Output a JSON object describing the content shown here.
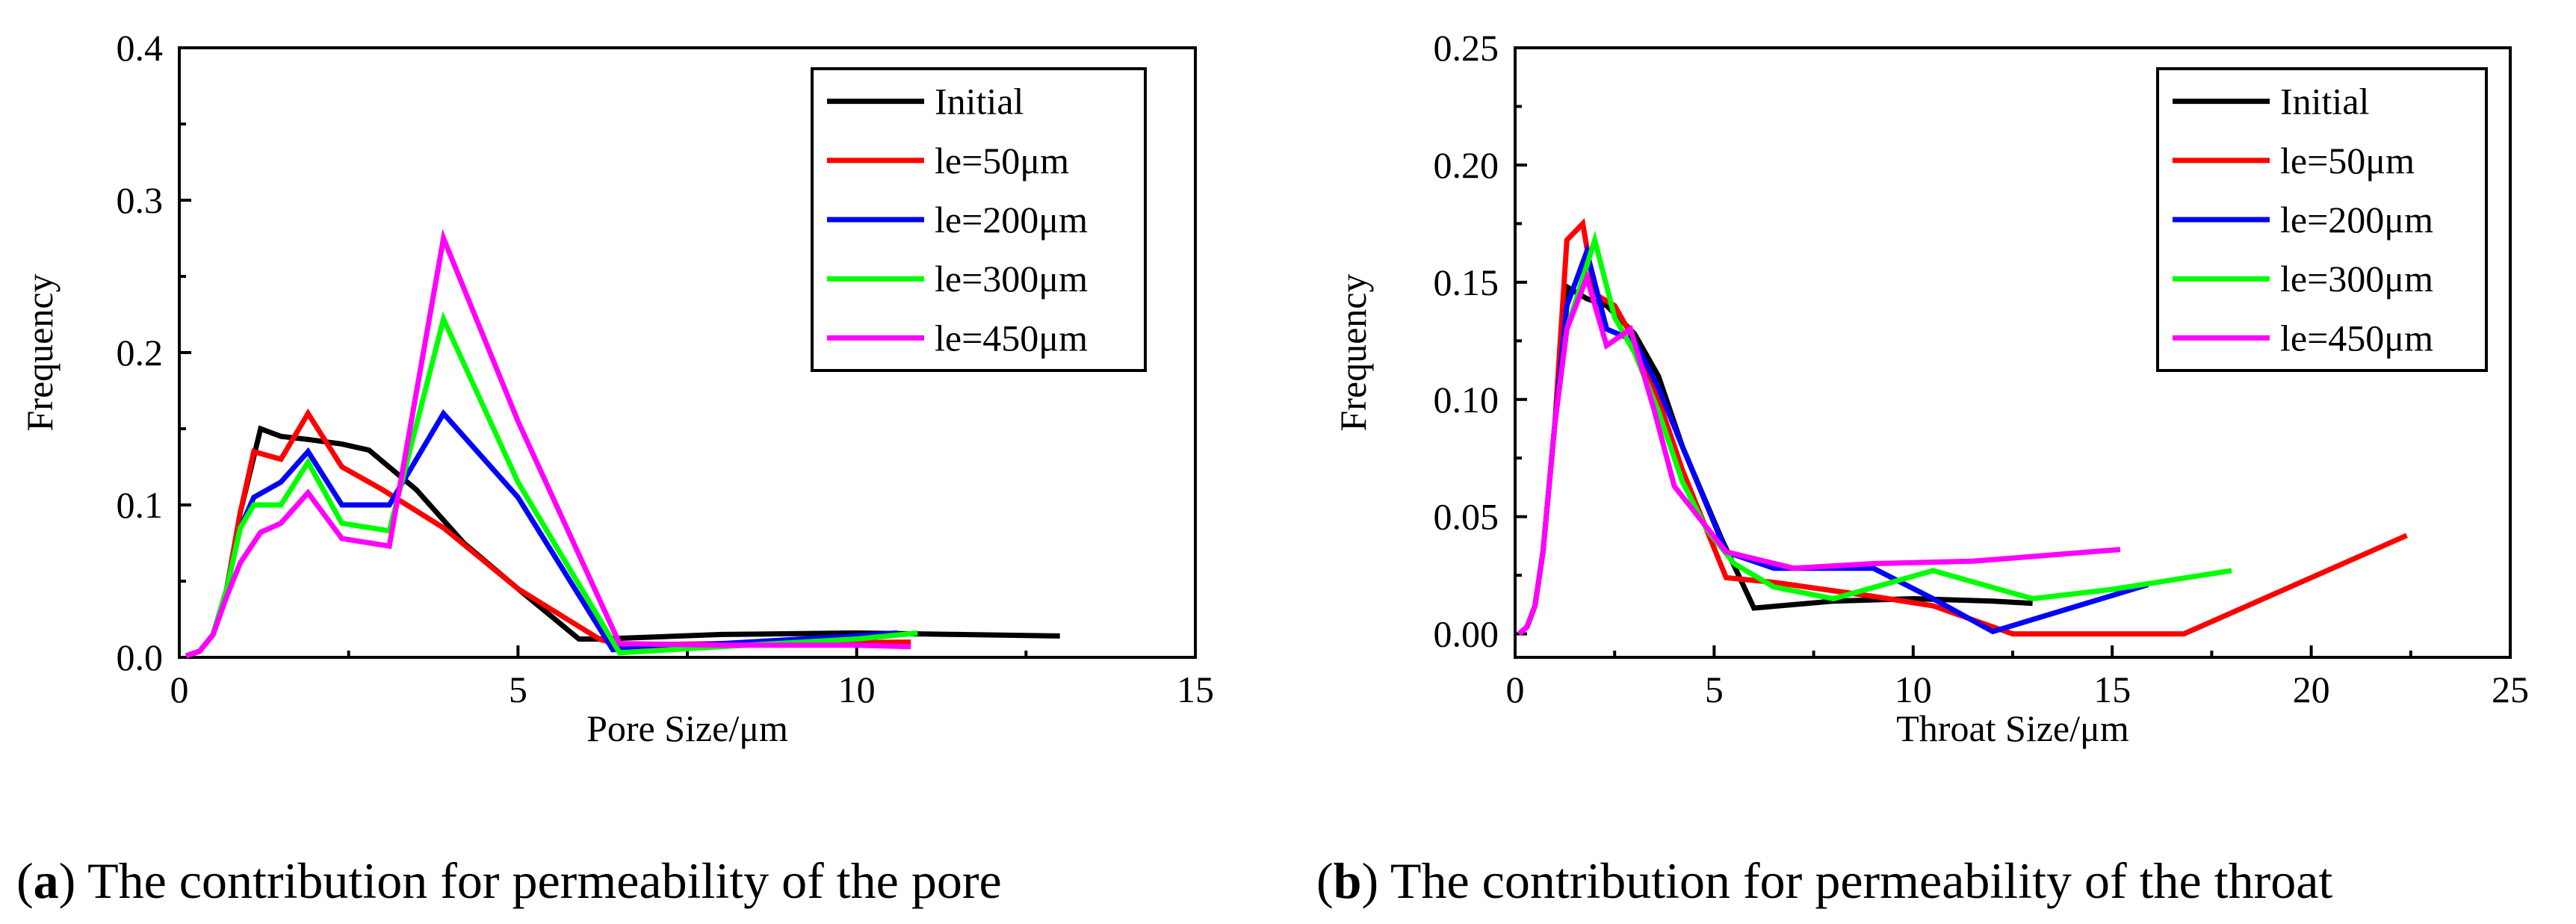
{
  "chart_data": [
    {
      "type": "line",
      "id": "a",
      "xlabel": "Pore Size/μm",
      "ylabel": "Frequency",
      "xlim": [
        0,
        15
      ],
      "ylim": [
        0,
        0.4
      ],
      "xticks": [
        0,
        5,
        10,
        15
      ],
      "xtick_labels": [
        "0",
        "5",
        "10",
        "15"
      ],
      "yticks": [
        0.0,
        0.1,
        0.2,
        0.3,
        0.4
      ],
      "ytick_labels": [
        "0.0",
        "0.1",
        "0.2",
        "0.3",
        "0.4"
      ],
      "legend_position": "top-right",
      "caption_letter": "a",
      "caption_text": " The contribution for permeability of the pore",
      "series": [
        {
          "name": "Initial",
          "color": "#000000",
          "x": [
            0.1,
            0.3,
            0.5,
            0.7,
            0.9,
            1.2,
            1.5,
            1.9,
            2.4,
            2.8,
            3.5,
            4.2,
            5.0,
            5.9,
            6.2,
            6.8,
            8.0,
            10.0,
            11.5,
            13.0
          ],
          "y": [
            0.001,
            0.004,
            0.015,
            0.045,
            0.095,
            0.15,
            0.145,
            0.143,
            0.14,
            0.136,
            0.11,
            0.075,
            0.045,
            0.012,
            0.012,
            0.013,
            0.015,
            0.016,
            0.015,
            0.014
          ]
        },
        {
          "name": "le=50μm",
          "color": "#ff0000",
          "x": [
            0.1,
            0.3,
            0.5,
            0.7,
            0.9,
            1.1,
            1.5,
            1.9,
            2.4,
            3.0,
            3.9,
            5.0,
            6.2,
            6.5,
            8.0,
            10.8
          ],
          "y": [
            0.001,
            0.004,
            0.015,
            0.045,
            0.095,
            0.135,
            0.13,
            0.16,
            0.125,
            0.11,
            0.085,
            0.045,
            0.012,
            0.008,
            0.009,
            0.01
          ]
        },
        {
          "name": "le=200μm",
          "color": "#0000ff",
          "x": [
            0.1,
            0.3,
            0.5,
            0.7,
            0.9,
            1.1,
            1.5,
            1.9,
            2.4,
            3.1,
            3.9,
            5.0,
            6.4,
            10.0,
            10.6
          ],
          "y": [
            0.001,
            0.004,
            0.015,
            0.045,
            0.085,
            0.105,
            0.115,
            0.135,
            0.1,
            0.1,
            0.16,
            0.105,
            0.005,
            0.014,
            0.016
          ]
        },
        {
          "name": "le=300μm",
          "color": "#00ff00",
          "x": [
            0.1,
            0.3,
            0.5,
            0.7,
            0.9,
            1.1,
            1.5,
            1.9,
            2.4,
            3.1,
            3.9,
            5.0,
            6.5,
            8.0,
            10.0,
            10.9
          ],
          "y": [
            0.001,
            0.004,
            0.015,
            0.045,
            0.085,
            0.1,
            0.1,
            0.128,
            0.088,
            0.083,
            0.222,
            0.115,
            0.003,
            0.007,
            0.012,
            0.016
          ]
        },
        {
          "name": "le=450μm",
          "color": "#ff00ff",
          "x": [
            0.1,
            0.3,
            0.5,
            0.7,
            0.9,
            1.2,
            1.5,
            1.9,
            2.4,
            3.1,
            3.9,
            5.0,
            6.5,
            8.0,
            10.0,
            10.8
          ],
          "y": [
            0.001,
            0.004,
            0.015,
            0.04,
            0.062,
            0.082,
            0.088,
            0.108,
            0.078,
            0.073,
            0.275,
            0.155,
            0.009,
            0.008,
            0.008,
            0.007
          ]
        }
      ]
    },
    {
      "type": "line",
      "id": "b",
      "xlabel": "Throat Size/μm",
      "ylabel": "Frequency",
      "xlim": [
        0,
        25
      ],
      "ylim": [
        -0.01,
        0.25
      ],
      "xticks": [
        0,
        5,
        10,
        15,
        20,
        25
      ],
      "xtick_labels": [
        "0",
        "5",
        "10",
        "15",
        "20",
        "25"
      ],
      "yticks": [
        0.0,
        0.05,
        0.1,
        0.15,
        0.2,
        0.25
      ],
      "ytick_labels": [
        "0.00",
        "0.05",
        "0.10",
        "0.15",
        "0.20",
        "0.25"
      ],
      "legend_position": "top-right",
      "caption_letter": "b",
      "caption_text": " The contribution for permeability of the throat",
      "series": [
        {
          "name": "Initial",
          "color": "#000000",
          "x": [
            0.1,
            0.3,
            0.5,
            0.7,
            1.0,
            1.3,
            1.8,
            2.3,
            3.0,
            3.6,
            4.2,
            5.2,
            6.0,
            8.0,
            10.0,
            12.0,
            13.0
          ],
          "y": [
            0.0,
            0.003,
            0.012,
            0.035,
            0.09,
            0.148,
            0.143,
            0.14,
            0.128,
            0.11,
            0.08,
            0.04,
            0.011,
            0.014,
            0.015,
            0.014,
            0.013
          ]
        },
        {
          "name": "le=50μm",
          "color": "#ff0000",
          "x": [
            0.1,
            0.3,
            0.5,
            0.7,
            1.0,
            1.3,
            1.7,
            2.0,
            2.5,
            3.0,
            3.6,
            4.2,
            5.3,
            6.5,
            9.0,
            10.5,
            12.5,
            15.0,
            16.8,
            22.4
          ],
          "y": [
            0.0,
            0.003,
            0.012,
            0.035,
            0.09,
            0.168,
            0.175,
            0.145,
            0.14,
            0.125,
            0.1,
            0.07,
            0.024,
            0.022,
            0.016,
            0.012,
            0.0,
            0.0,
            0.0,
            0.042
          ]
        },
        {
          "name": "le=200μm",
          "color": "#0000ff",
          "x": [
            0.1,
            0.3,
            0.5,
            0.7,
            1.0,
            1.3,
            1.8,
            2.3,
            3.0,
            3.6,
            4.2,
            5.3,
            6.5,
            9.0,
            10.5,
            12.0,
            15.9
          ],
          "y": [
            0.0,
            0.003,
            0.012,
            0.035,
            0.09,
            0.14,
            0.163,
            0.13,
            0.125,
            0.105,
            0.08,
            0.035,
            0.028,
            0.028,
            0.015,
            0.001,
            0.021
          ]
        },
        {
          "name": "le=300μm",
          "color": "#00ff00",
          "x": [
            0.1,
            0.3,
            0.5,
            0.7,
            1.0,
            1.3,
            2.0,
            2.5,
            3.0,
            3.6,
            4.2,
            4.8,
            5.5,
            6.5,
            8.0,
            10.5,
            13.0,
            15.0,
            18.0
          ],
          "y": [
            0.0,
            0.003,
            0.012,
            0.035,
            0.09,
            0.13,
            0.168,
            0.135,
            0.12,
            0.095,
            0.065,
            0.045,
            0.03,
            0.02,
            0.015,
            0.027,
            0.015,
            0.019,
            0.027
          ]
        },
        {
          "name": "le=450μm",
          "color": "#ff00ff",
          "x": [
            0.1,
            0.3,
            0.5,
            0.7,
            1.0,
            1.3,
            1.8,
            2.3,
            2.9,
            3.5,
            4.0,
            5.3,
            7.0,
            9.0,
            11.5,
            13.0,
            15.2
          ],
          "y": [
            0.0,
            0.003,
            0.012,
            0.035,
            0.09,
            0.13,
            0.152,
            0.123,
            0.13,
            0.095,
            0.063,
            0.035,
            0.028,
            0.03,
            0.031,
            0.033,
            0.036
          ]
        }
      ]
    }
  ]
}
